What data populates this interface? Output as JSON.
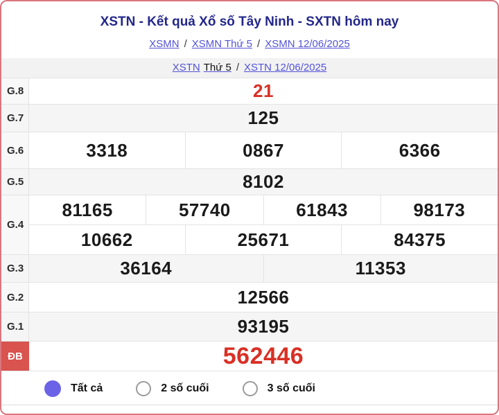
{
  "header": {
    "title": "XSTN - Kết quả Xổ số Tây Ninh - SXTN hôm nay"
  },
  "breadcrumbs": {
    "separator": "/",
    "primary": [
      {
        "parts": [
          {
            "text": "XSMN",
            "link": true
          }
        ]
      },
      {
        "parts": [
          {
            "text": "XSMN Thứ 5",
            "link": true
          }
        ]
      },
      {
        "parts": [
          {
            "text": "XSMN 12/06/2025",
            "link": true
          }
        ]
      }
    ],
    "secondary": [
      {
        "parts": [
          {
            "text": "XSTN",
            "link": true
          },
          {
            "text": "Thứ 5",
            "link": false
          }
        ]
      },
      {
        "parts": [
          {
            "text": "XSTN 12/06/2025",
            "link": true
          }
        ]
      }
    ]
  },
  "results": {
    "rows": [
      {
        "id": "g8",
        "label": "G.8",
        "lines": [
          [
            "21"
          ]
        ],
        "highlight": true
      },
      {
        "id": "g7",
        "label": "G.7",
        "lines": [
          [
            "125"
          ]
        ]
      },
      {
        "id": "g6",
        "label": "G.6",
        "lines": [
          [
            "3318",
            "0867",
            "6366"
          ]
        ]
      },
      {
        "id": "g5",
        "label": "G.5",
        "lines": [
          [
            "8102"
          ]
        ]
      },
      {
        "id": "g4",
        "label": "G.4",
        "lines": [
          [
            "81165",
            "57740",
            "61843",
            "98173"
          ],
          [
            "10662",
            "25671",
            "84375"
          ]
        ]
      },
      {
        "id": "g3",
        "label": "G.3",
        "lines": [
          [
            "36164",
            "11353"
          ]
        ]
      },
      {
        "id": "g2",
        "label": "G.2",
        "lines": [
          [
            "12566"
          ]
        ]
      },
      {
        "id": "g1",
        "label": "G.1",
        "lines": [
          [
            "93195"
          ]
        ]
      },
      {
        "id": "db",
        "label": "ĐB",
        "lines": [
          [
            "562446"
          ]
        ],
        "highlight": true,
        "special": true
      }
    ]
  },
  "filters": {
    "options": [
      {
        "label": "Tất cả",
        "selected": true
      },
      {
        "label": "2 số cuối",
        "selected": false
      },
      {
        "label": "3 số cuối",
        "selected": false
      }
    ]
  },
  "colors": {
    "page_border": "#da767e",
    "title": "#23278a",
    "link": "#5353d6",
    "red_number": "#d93025",
    "special_label_bg": "#d9534f",
    "stripe_row": "#f5f5f5",
    "radio_selected": "#6b63e6"
  }
}
